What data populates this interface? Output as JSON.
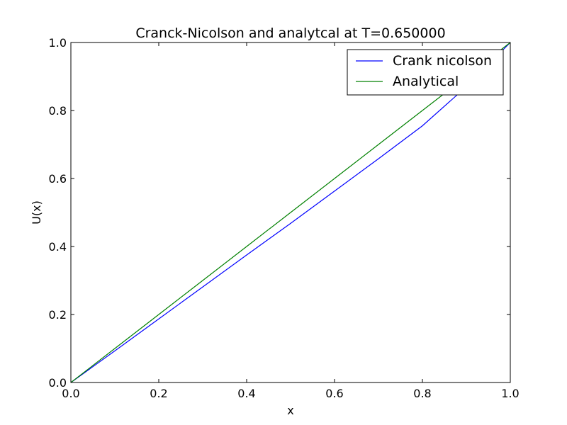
{
  "chart_data": {
    "type": "line",
    "title": "Cranck-Nicolson and analytcal at T=0.650000",
    "xlabel": "x",
    "ylabel": "U(x)",
    "xlim": [
      0.0,
      1.0
    ],
    "ylim": [
      0.0,
      1.0
    ],
    "xticks": [
      0.0,
      0.2,
      0.4,
      0.6,
      0.8,
      1.0
    ],
    "xtick_labels": [
      "0.0",
      "0.2",
      "0.4",
      "0.6",
      "0.8",
      "1.0"
    ],
    "yticks": [
      0.0,
      0.2,
      0.4,
      0.6,
      0.8,
      1.0
    ],
    "ytick_labels": [
      "0.0",
      "0.2",
      "0.4",
      "0.6",
      "0.8",
      "1.0"
    ],
    "grid": false,
    "legend_position": "top-right",
    "series": [
      {
        "name": "Crank nicolson",
        "color": "#0000ff",
        "x": [
          0.0,
          0.1,
          0.2,
          0.3,
          0.4,
          0.5,
          0.6,
          0.7,
          0.8,
          0.9,
          1.0
        ],
        "y": [
          0.0,
          0.093,
          0.187,
          0.281,
          0.375,
          0.468,
          0.563,
          0.658,
          0.755,
          0.87,
          1.0
        ]
      },
      {
        "name": "Analytical",
        "color": "#008000",
        "x": [
          0.0,
          0.1,
          0.2,
          0.3,
          0.4,
          0.5,
          0.6,
          0.7,
          0.8,
          0.9,
          1.0
        ],
        "y": [
          0.0,
          0.1,
          0.2,
          0.3,
          0.4,
          0.5,
          0.6,
          0.7,
          0.8,
          0.9,
          1.0
        ]
      }
    ]
  }
}
